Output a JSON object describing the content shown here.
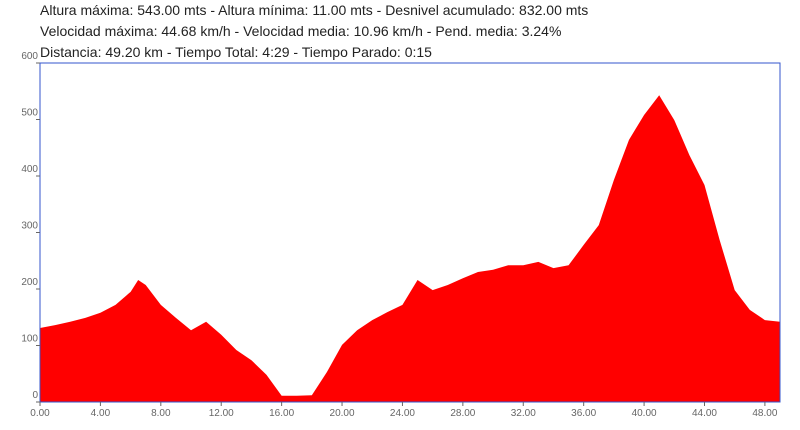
{
  "chart_data": {
    "type": "area",
    "subtitle_lines": [
      "Altura máxima: 543.00 mts - Altura mínima: 11.00 mts - Desnivel acumulado: 832.00 mts",
      "Velocidad máxima: 44.68 km/h - Velocidad media: 10.96 km/h - Pend. media: 3.24%",
      "Distancia: 49.20 km - Tiempo Total: 4:29 - Tiempo Parado: 0:15"
    ],
    "x": [
      0,
      1,
      2,
      3,
      4,
      5,
      6,
      6.5,
      7,
      8,
      9,
      10,
      11,
      12,
      13,
      14,
      15,
      16,
      17,
      18,
      19,
      20,
      21,
      22,
      23,
      24,
      25,
      26,
      27,
      28,
      29,
      30,
      31,
      32,
      33,
      34,
      35,
      36,
      37,
      38,
      39,
      40,
      41,
      42,
      43,
      44,
      45,
      46,
      47,
      48,
      49
    ],
    "series": [
      {
        "color": "#ff0000",
        "values": [
          131,
          136,
          142,
          149,
          158,
          172,
          195,
          216,
          207,
          172,
          149,
          127,
          142,
          119,
          92,
          74,
          48,
          11,
          11,
          12,
          53,
          101,
          127,
          145,
          159,
          172,
          216,
          198,
          207,
          219,
          230,
          234,
          242,
          242,
          248,
          237,
          242,
          278,
          313,
          393,
          464,
          508,
          543,
          499,
          437,
          384,
          287,
          198,
          163,
          145,
          142
        ]
      }
    ],
    "xlim": [
      0,
      49
    ],
    "ylim": [
      0,
      600
    ],
    "xticks": [
      {
        "value": 0,
        "label": "0.00"
      },
      {
        "value": 4,
        "label": "4.00"
      },
      {
        "value": 8,
        "label": "8.00"
      },
      {
        "value": 12,
        "label": "12.00"
      },
      {
        "value": 16,
        "label": "16.00"
      },
      {
        "value": 20,
        "label": "20.00"
      },
      {
        "value": 24,
        "label": "24.00"
      },
      {
        "value": 28,
        "label": "28.00"
      },
      {
        "value": 32,
        "label": "32.00"
      },
      {
        "value": 36,
        "label": "36.00"
      },
      {
        "value": 40,
        "label": "40.00"
      },
      {
        "value": 44,
        "label": "44.00"
      },
      {
        "value": 48,
        "label": "48.00"
      }
    ],
    "yticks": [
      0,
      100,
      200,
      300,
      400,
      500,
      600
    ]
  }
}
